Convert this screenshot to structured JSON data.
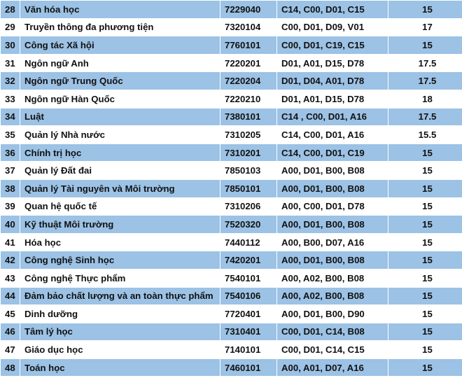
{
  "rows": [
    {
      "stt": "28",
      "name": "Văn hóa học",
      "code": "7229040",
      "combos": "C14, C00, D01, C15",
      "score": "15"
    },
    {
      "stt": "29",
      "name": "Truyền thông đa phương tiện",
      "code": "7320104",
      "combos": "C00, D01, D09, V01",
      "score": "17"
    },
    {
      "stt": "30",
      "name": "Công tác Xã hội",
      "code": "7760101",
      "combos": "C00, D01, C19, C15",
      "score": "15"
    },
    {
      "stt": "31",
      "name": "Ngôn ngữ Anh",
      "code": "7220201",
      "combos": "D01, A01, D15, D78",
      "score": "17.5"
    },
    {
      "stt": "32",
      "name": "Ngôn ngữ Trung Quốc",
      "code": "7220204",
      "combos": "D01, D04, A01, D78",
      "score": "17.5"
    },
    {
      "stt": "33",
      "name": "Ngôn ngữ Hàn Quốc",
      "code": "7220210",
      "combos": "D01, A01, D15, D78",
      "score": "18"
    },
    {
      "stt": "34",
      "name": "Luật",
      "code": "7380101",
      "combos": "C14 , C00, D01, A16",
      "score": "17.5"
    },
    {
      "stt": "35",
      "name": "Quản lý Nhà nước",
      "code": "7310205",
      "combos": "C14, C00, D01, A16",
      "score": "15.5"
    },
    {
      "stt": "36",
      "name": "Chính trị học",
      "code": "7310201",
      "combos": "C14, C00, D01, C19",
      "score": "15"
    },
    {
      "stt": "37",
      "name": "Quản lý Đất đai",
      "code": "7850103",
      "combos": "A00, D01, B00, B08",
      "score": "15"
    },
    {
      "stt": "38",
      "name": "Quản lý Tài nguyên và Môi trường",
      "code": "7850101",
      "combos": "A00, D01, B00, B08",
      "score": "15"
    },
    {
      "stt": "39",
      "name": "Quan hệ quốc tế",
      "code": "7310206",
      "combos": "A00, C00, D01, D78",
      "score": "15"
    },
    {
      "stt": "40",
      "name": "Kỹ thuật Môi trường",
      "code": "7520320",
      "combos": "A00, D01, B00, B08",
      "score": "15"
    },
    {
      "stt": "41",
      "name": "Hóa học",
      "code": "7440112",
      "combos": "A00, B00, D07, A16",
      "score": "15"
    },
    {
      "stt": "42",
      "name": "Công nghệ Sinh học",
      "code": "7420201",
      "combos": "A00, D01, B00, B08",
      "score": "15"
    },
    {
      "stt": "43",
      "name": "Công nghệ Thực phẩm",
      "code": "7540101",
      "combos": "A00, A02, B00, B08",
      "score": "15"
    },
    {
      "stt": "44",
      "name": "Đảm bảo chất lượng và an toàn thực phẩm",
      "code": "7540106",
      "combos": "A00, A02, B00, B08",
      "score": "15"
    },
    {
      "stt": "45",
      "name": "Dinh dưỡng",
      "code": "7720401",
      "combos": "A00, D01, B00, D90",
      "score": "15"
    },
    {
      "stt": "46",
      "name": "Tâm lý học",
      "code": "7310401",
      "combos": "C00, D01, C14, B08",
      "score": "15"
    },
    {
      "stt": "47",
      "name": "Giáo dục học",
      "code": "7140101",
      "combos": "C00, D01, C14, C15",
      "score": "15"
    },
    {
      "stt": "48",
      "name": "Toán học",
      "code": "7460101",
      "combos": "A00, A01, D07, A16",
      "score": "15"
    }
  ]
}
